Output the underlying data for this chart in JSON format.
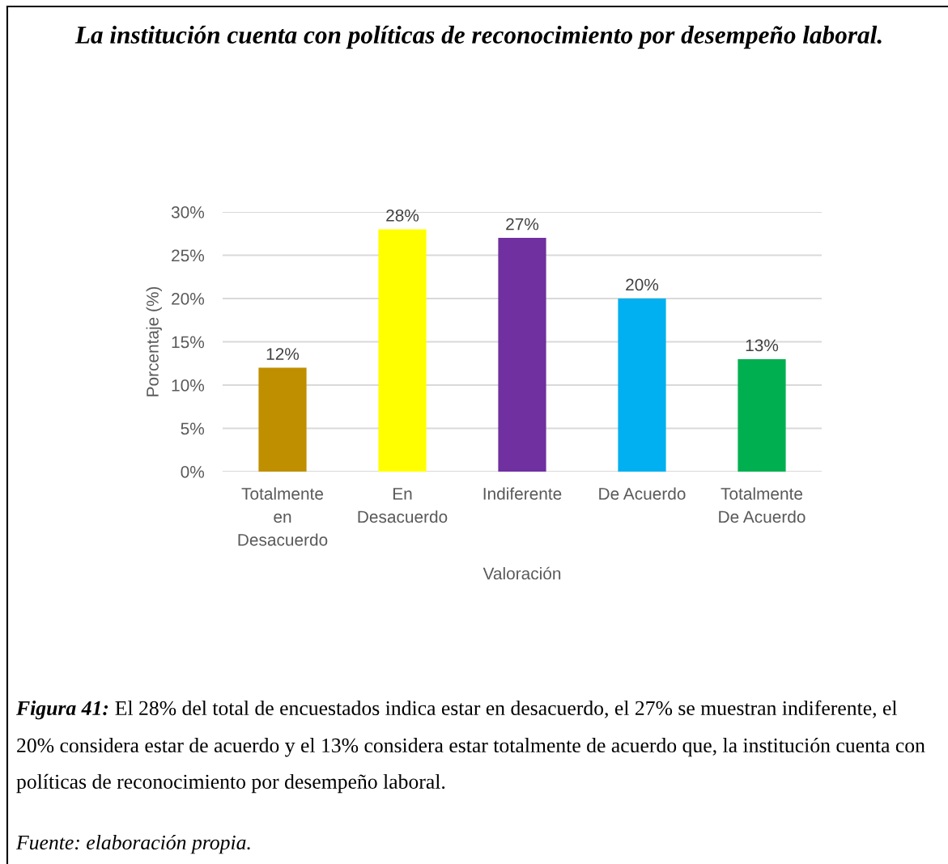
{
  "chart_data": {
    "type": "bar",
    "title": "La institución cuenta con políticas de reconocimiento por desempeño laboral.",
    "xlabel": "Valoración",
    "ylabel": "Porcentaje (%)",
    "categories": [
      "Totalmente\nen\nDesacuerdo",
      "En\nDesacuerdo",
      "Indiferente",
      "De Acuerdo",
      "Totalmente\nDe Acuerdo"
    ],
    "values": [
      12,
      28,
      27,
      20,
      13
    ],
    "colors": [
      "#bf8f00",
      "#ffff00",
      "#7030a0",
      "#00b0f0",
      "#00b050"
    ],
    "value_labels": [
      "12%",
      "28%",
      "27%",
      "20%",
      "13%"
    ],
    "ylim": [
      0,
      30
    ],
    "yticks": [
      {
        "value": 0,
        "label": "0%"
      },
      {
        "value": 5,
        "label": "5%"
      },
      {
        "value": 10,
        "label": "10%"
      },
      {
        "value": 15,
        "label": "15%"
      },
      {
        "value": 20,
        "label": "20%"
      },
      {
        "value": 25,
        "label": "25%"
      },
      {
        "value": 30,
        "label": "30%"
      }
    ],
    "grid": "y",
    "annotations": [
      "Figura 41: El 28% del total de encuestados indica estar en desacuerdo, el 27% se muestran indiferente, el 20% considera estar de acuerdo y el 13% considera estar totalmente de acuerdo que, la institución cuenta con políticas de reconocimiento por desempeño laboral.",
      "Fuente: elaboración propia."
    ]
  }
}
